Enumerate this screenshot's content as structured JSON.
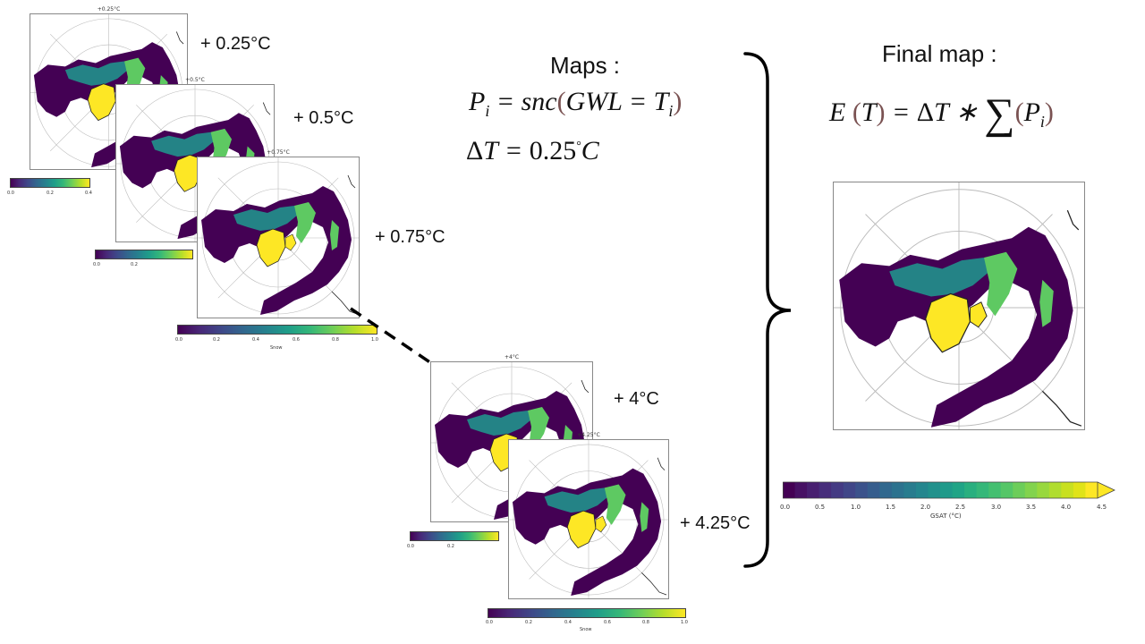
{
  "maps": [
    {
      "title": "+0.25°C",
      "label": "+ 0.25°C",
      "ticks": [
        "0.0",
        "0.2",
        "0.4"
      ],
      "cbar_label": ""
    },
    {
      "title": "+0.5°C",
      "label": "+ 0.5°C",
      "ticks": [
        "0.0",
        "0.2"
      ],
      "cbar_label": ""
    },
    {
      "title": "+0.75°C",
      "label": "+ 0.75°C",
      "ticks": [
        "0.0",
        "0.2",
        "0.4",
        "0.6",
        "0.8",
        "1.0"
      ],
      "cbar_label": "Snow"
    },
    {
      "title": "+4°C",
      "label": "+ 4°C",
      "ticks": [
        "0.0",
        "0.2"
      ],
      "cbar_label": ""
    },
    {
      "title": "+4.25°C",
      "label": "+ 4.25°C",
      "ticks": [
        "0.0",
        "0.2",
        "0.4",
        "0.6",
        "0.8",
        "1.0"
      ],
      "cbar_label": "Snow"
    }
  ],
  "maps_heading": "Maps :",
  "final_heading": "Final map :",
  "final_colorbar": {
    "ticks": [
      "0.0",
      "0.5",
      "1.0",
      "1.5",
      "2.0",
      "2.5",
      "3.0",
      "3.5",
      "4.0",
      "4.5"
    ],
    "label": "GSAT (°C)",
    "colors": [
      "#440154",
      "#471164",
      "#481f70",
      "#472d7b",
      "#443a83",
      "#404688",
      "#3b528b",
      "#365d8d",
      "#31688e",
      "#2c728e",
      "#287c8e",
      "#24868e",
      "#21918c",
      "#1f9a8a",
      "#20a486",
      "#29af7f",
      "#35b779",
      "#44bf70",
      "#55c667",
      "#6ccd5a",
      "#82d34d",
      "#98d83e",
      "#b0dd2f",
      "#c8e020",
      "#e0e318",
      "#fde725"
    ]
  },
  "palette": {
    "dark": "#440154",
    "mid": "#21918c",
    "light": "#5ec962",
    "yellow": "#fde725",
    "grid": "#bbbbbb"
  }
}
